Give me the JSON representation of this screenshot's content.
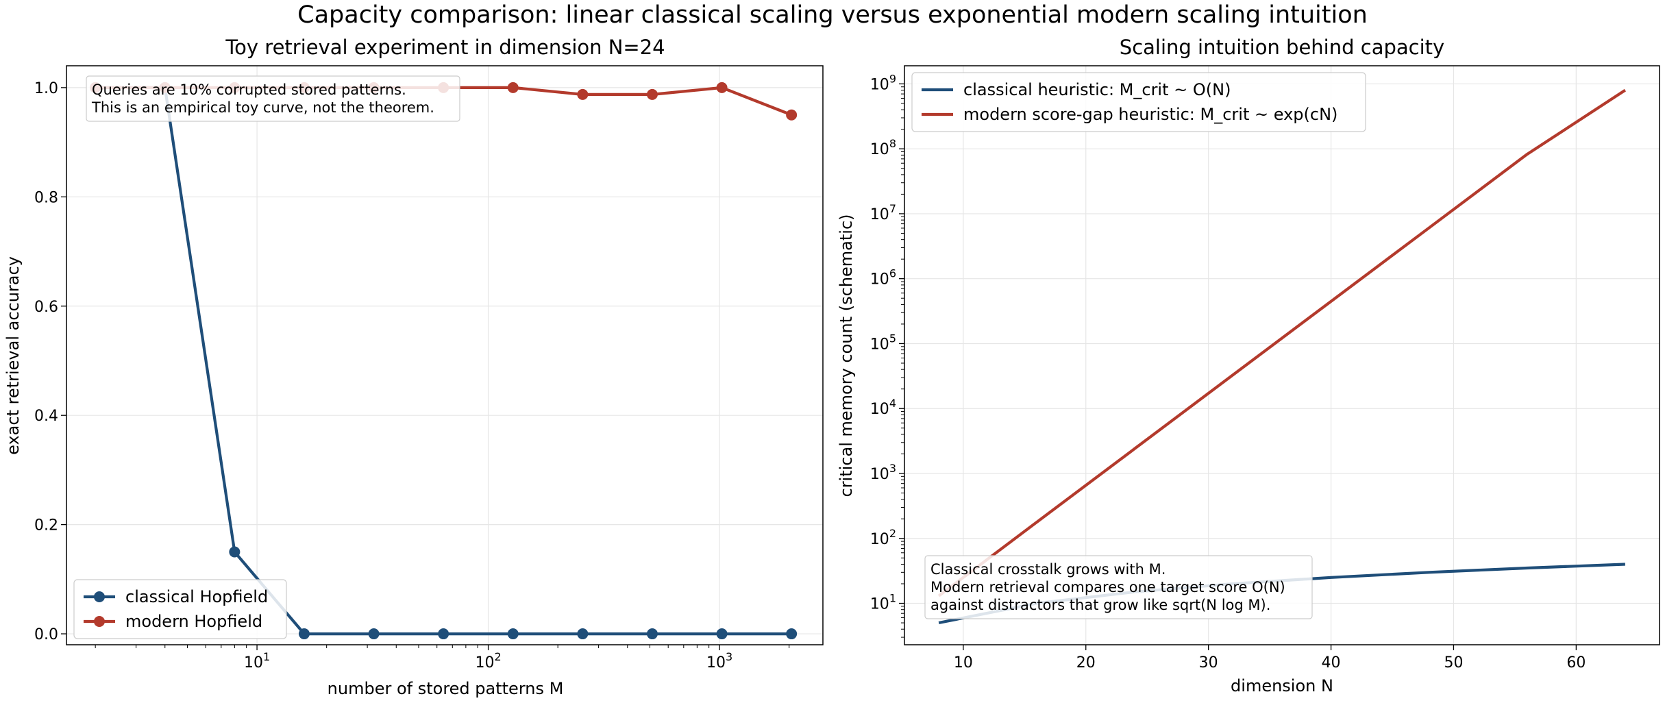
{
  "figure": {
    "suptitle": "Capacity comparison: linear classical scaling versus exponential modern scaling intuition"
  },
  "chart_data": [
    {
      "type": "line",
      "title": "Toy retrieval experiment in dimension N=24",
      "xlabel": "number of stored patterns M",
      "ylabel": "exact retrieval accuracy",
      "xscale": "log",
      "xlim": [
        1.5,
        2800
      ],
      "ylim": [
        -0.02,
        1.04
      ],
      "x_ticks": [
        {
          "value": 10,
          "base": "10",
          "exp": "1"
        },
        {
          "value": 100,
          "base": "10",
          "exp": "2"
        },
        {
          "value": 1000,
          "base": "10",
          "exp": "3"
        }
      ],
      "y_ticks": [
        {
          "value": 0.0,
          "label": "0.0"
        },
        {
          "value": 0.2,
          "label": "0.2"
        },
        {
          "value": 0.4,
          "label": "0.4"
        },
        {
          "value": 0.6,
          "label": "0.6"
        },
        {
          "value": 0.8,
          "label": "0.8"
        },
        {
          "value": 1.0,
          "label": "1.0"
        }
      ],
      "grid": true,
      "legend_position": "lower-left",
      "series": [
        {
          "name": "classical Hopfield",
          "color": "#1f4e79",
          "marker": "circle",
          "x": [
            2,
            4,
            8,
            16,
            32,
            64,
            128,
            256,
            512,
            1024,
            2048
          ],
          "y": [
            1.0,
            1.0,
            0.15,
            0.0,
            0.0,
            0.0,
            0.0,
            0.0,
            0.0,
            0.0,
            0.0
          ]
        },
        {
          "name": "modern Hopfield",
          "color": "#b33a2c",
          "marker": "circle",
          "x": [
            2,
            4,
            8,
            16,
            32,
            64,
            128,
            256,
            512,
            1024,
            2048
          ],
          "y": [
            1.0,
            1.0,
            1.0,
            1.0,
            1.0,
            1.0,
            1.0,
            0.9875,
            0.9875,
            1.0,
            0.95
          ]
        }
      ],
      "annotation": [
        "Queries are 10% corrupted stored patterns.",
        "This is an empirical toy curve, not the theorem."
      ]
    },
    {
      "type": "line",
      "title": "Scaling intuition behind capacity",
      "xlabel": "dimension N",
      "ylabel": "critical memory count (schematic)",
      "yscale": "log",
      "xlim": [
        5.2,
        66.8
      ],
      "ylim": [
        2.3,
        1900000000.0
      ],
      "x_ticks": [
        {
          "value": 10,
          "label": "10"
        },
        {
          "value": 20,
          "label": "20"
        },
        {
          "value": 30,
          "label": "30"
        },
        {
          "value": 40,
          "label": "40"
        },
        {
          "value": 50,
          "label": "50"
        },
        {
          "value": 60,
          "label": "60"
        }
      ],
      "y_ticks": [
        {
          "value": 10,
          "base": "10",
          "exp": "1"
        },
        {
          "value": 100,
          "base": "10",
          "exp": "2"
        },
        {
          "value": 1000,
          "base": "10",
          "exp": "3"
        },
        {
          "value": 10000,
          "base": "10",
          "exp": "4"
        },
        {
          "value": 100000,
          "base": "10",
          "exp": "5"
        },
        {
          "value": 1000000,
          "base": "10",
          "exp": "6"
        },
        {
          "value": 10000000,
          "base": "10",
          "exp": "7"
        },
        {
          "value": 100000000,
          "base": "10",
          "exp": "8"
        },
        {
          "value": 1000000000,
          "base": "10",
          "exp": "9"
        }
      ],
      "grid": true,
      "legend_position": "upper-left",
      "series": [
        {
          "name": "classical heuristic: M_crit ~ O(N)",
          "color": "#1f4e79",
          "x": [
            8,
            16,
            24,
            32,
            40,
            48,
            56,
            64
          ],
          "y": [
            5,
            10,
            15,
            20,
            25,
            30,
            35,
            40
          ]
        },
        {
          "name": "modern score-gap heuristic: M_crit ~ exp(cN)",
          "color": "#b33a2c",
          "x": [
            8,
            16,
            24,
            32,
            40,
            48,
            56,
            64
          ],
          "y": [
            13,
            178,
            2420,
            32900,
            447000,
            6070000,
            82500000,
            800000000
          ]
        }
      ],
      "annotation": [
        "Classical crosstalk grows with M.",
        "Modern retrieval compares one target score O(N)",
        "against distractors that grow like sqrt(N log M)."
      ]
    }
  ]
}
